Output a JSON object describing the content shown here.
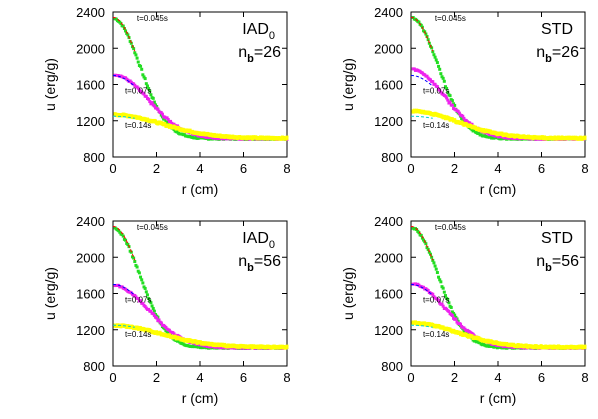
{
  "chart_data": [
    {
      "type": "scatter",
      "method_label": "IAD",
      "method_subscript": "0",
      "nb_label": "n",
      "nb_subscript": "b",
      "nb_value": "=26",
      "xlabel": "r (cm)",
      "ylabel": "u (erg/g)",
      "xlim": [
        0,
        8
      ],
      "ylim": [
        800,
        2400
      ],
      "xticks": [
        "0",
        "2",
        "4",
        "6",
        "8"
      ],
      "yticks": [
        "800",
        "1200",
        "1600",
        "2000",
        "2400"
      ],
      "time_labels": [
        {
          "text": "t=0.045s",
          "x": 1.1,
          "y": 2300
        },
        {
          "text": "t=0.07s",
          "x": 0.55,
          "y": 1500
        },
        {
          "text": "t=0.14s",
          "x": 0.55,
          "y": 1120
        }
      ],
      "series": [
        {
          "color": "#22dd22",
          "peak": 2330,
          "sigma": 1.75
        },
        {
          "color": "#ee22ee",
          "peak": 1710,
          "sigma": 2.3
        },
        {
          "color": "#ffff00",
          "peak": 1260,
          "sigma": 3.2
        }
      ],
      "analytic": [
        {
          "color": "#ff0000",
          "peak": 2340,
          "sigma": 1.75
        },
        {
          "color": "#0000ff",
          "peak": 1700,
          "sigma": 2.3
        },
        {
          "color": "#00cccc",
          "peak": 1250,
          "sigma": 3.2
        }
      ]
    },
    {
      "type": "scatter",
      "method_label": "STD",
      "method_subscript": "",
      "nb_label": "n",
      "nb_subscript": "b",
      "nb_value": "=26",
      "xlabel": "r (cm)",
      "ylabel": "u (erg/g)",
      "xlim": [
        0,
        8
      ],
      "ylim": [
        800,
        2400
      ],
      "xticks": [
        "0",
        "2",
        "4",
        "6",
        "8"
      ],
      "yticks": [
        "800",
        "1200",
        "1600",
        "2000",
        "2400"
      ],
      "time_labels": [
        {
          "text": "t=0.045s",
          "x": 1.1,
          "y": 2300
        },
        {
          "text": "t=0.07s",
          "x": 0.55,
          "y": 1500
        },
        {
          "text": "t=0.14s",
          "x": 0.55,
          "y": 1120
        }
      ],
      "series": [
        {
          "color": "#22dd22",
          "peak": 2340,
          "sigma": 1.75
        },
        {
          "color": "#ee22ee",
          "peak": 1770,
          "sigma": 2.2
        },
        {
          "color": "#ffff00",
          "peak": 1300,
          "sigma": 3.0
        }
      ],
      "analytic": [
        {
          "color": "#ff0000",
          "peak": 2340,
          "sigma": 1.75
        },
        {
          "color": "#0000ff",
          "peak": 1700,
          "sigma": 2.3
        },
        {
          "color": "#00cccc",
          "peak": 1250,
          "sigma": 3.2
        }
      ]
    },
    {
      "type": "scatter",
      "method_label": "IAD",
      "method_subscript": "0",
      "nb_label": "n",
      "nb_subscript": "b",
      "nb_value": "=56",
      "xlabel": "r (cm)",
      "ylabel": "u (erg/g)",
      "xlim": [
        0,
        8
      ],
      "ylim": [
        800,
        2400
      ],
      "xticks": [
        "0",
        "2",
        "4",
        "6",
        "8"
      ],
      "yticks": [
        "800",
        "1200",
        "1600",
        "2000",
        "2400"
      ],
      "time_labels": [
        {
          "text": "t=0.045s",
          "x": 1.1,
          "y": 2300
        },
        {
          "text": "t=0.07s",
          "x": 0.55,
          "y": 1500
        },
        {
          "text": "t=0.14s",
          "x": 0.55,
          "y": 1120
        }
      ],
      "series": [
        {
          "color": "#22dd22",
          "peak": 2320,
          "sigma": 1.75
        },
        {
          "color": "#ee22ee",
          "peak": 1690,
          "sigma": 2.3
        },
        {
          "color": "#ffff00",
          "peak": 1240,
          "sigma": 3.2
        }
      ],
      "analytic": [
        {
          "color": "#ff0000",
          "peak": 2340,
          "sigma": 1.75
        },
        {
          "color": "#0000ff",
          "peak": 1700,
          "sigma": 2.3
        },
        {
          "color": "#00cccc",
          "peak": 1250,
          "sigma": 3.2
        }
      ]
    },
    {
      "type": "scatter",
      "method_label": "STD",
      "method_subscript": "",
      "nb_label": "n",
      "nb_subscript": "b",
      "nb_value": "=56",
      "xlabel": "r (cm)",
      "ylabel": "u (erg/g)",
      "xlim": [
        0,
        8
      ],
      "ylim": [
        800,
        2400
      ],
      "xticks": [
        "0",
        "2",
        "4",
        "6",
        "8"
      ],
      "yticks": [
        "800",
        "1200",
        "1600",
        "2000",
        "2400"
      ],
      "time_labels": [
        {
          "text": "t=0.045s",
          "x": 1.1,
          "y": 2300
        },
        {
          "text": "t=0.07s",
          "x": 0.55,
          "y": 1500
        },
        {
          "text": "t=0.14s",
          "x": 0.55,
          "y": 1120
        }
      ],
      "series": [
        {
          "color": "#22dd22",
          "peak": 2330,
          "sigma": 1.75
        },
        {
          "color": "#ee22ee",
          "peak": 1710,
          "sigma": 2.25
        },
        {
          "color": "#ffff00",
          "peak": 1270,
          "sigma": 3.0
        }
      ],
      "analytic": [
        {
          "color": "#ff0000",
          "peak": 2340,
          "sigma": 1.75
        },
        {
          "color": "#0000ff",
          "peak": 1700,
          "sigma": 2.3
        },
        {
          "color": "#00cccc",
          "peak": 1250,
          "sigma": 3.2
        }
      ]
    }
  ]
}
